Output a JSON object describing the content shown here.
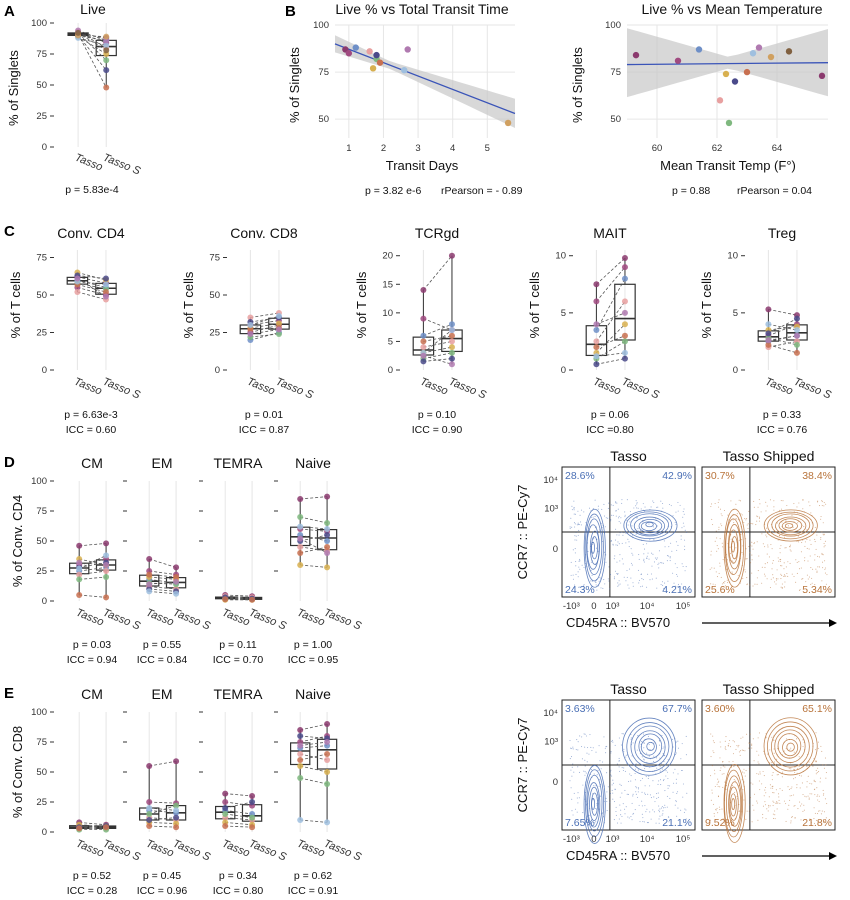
{
  "colors": {
    "tasso_blue": "#4a6fb5",
    "shipped_brown": "#b8733a",
    "fit_line": "#3a54b8",
    "ci_band": "#c8c8c8",
    "box": "#333333",
    "points": [
      "#8b3a6e",
      "#a04a80",
      "#6e8fc7",
      "#e8a0a0",
      "#d8b050",
      "#7fb87f",
      "#4a4a8a",
      "#c87050",
      "#9fbfdf",
      "#b07ab0",
      "#d0a060",
      "#806040"
    ]
  },
  "panel_letters": {
    "A": "A",
    "B": "B",
    "C": "C",
    "D": "D",
    "E": "E"
  },
  "category_labels": [
    "Tasso",
    "Tasso S"
  ],
  "panel_A": {
    "title": "Live",
    "ylabel": "% of Singlets",
    "yticks": [
      "0",
      "25",
      "50",
      "75",
      "100"
    ],
    "ylim": [
      0,
      100
    ],
    "stat": "p = 5.83e-4"
  },
  "panel_B_left": {
    "title": "Live % vs Total Transit Time",
    "xlabel": "Transit Days",
    "ylabel": "% of Singlets",
    "xticks": [
      "1",
      "2",
      "3",
      "4",
      "5"
    ],
    "yticks": [
      "50",
      "75",
      "100"
    ],
    "stat_p": "p = 3.82 e-6",
    "stat_r": "rPearson = - 0.89"
  },
  "panel_B_right": {
    "title": "Live % vs Mean Temperature",
    "xlabel": "Mean Transit Temp (F°)",
    "ylabel": "% of Singlets",
    "xticks": [
      "60",
      "62",
      "64"
    ],
    "yticks": [
      "50",
      "75",
      "100"
    ],
    "stat_p": "p = 0.88",
    "stat_r": "rPearson = 0.04"
  },
  "panel_C": [
    {
      "title": "Conv. CD4",
      "ylabel": "% of T cells",
      "yticks": [
        "0",
        "25",
        "50",
        "75"
      ],
      "p": "p = 6.63e-3",
      "icc": "ICC = 0.60"
    },
    {
      "title": "Conv. CD8",
      "ylabel": "% of T cells",
      "yticks": [
        "0",
        "25",
        "50",
        "75"
      ],
      "p": "p = 0.01",
      "icc": "ICC = 0.87"
    },
    {
      "title": "TCRgd",
      "ylabel": "% of T cells",
      "yticks": [
        "0",
        "5",
        "10",
        "15",
        "20"
      ],
      "p": "p = 0.10",
      "icc": "ICC = 0.90"
    },
    {
      "title": "MAIT",
      "ylabel": "% of T cells",
      "yticks": [
        "0",
        "5",
        "10"
      ],
      "p": "p = 0.06",
      "icc": "ICC =0.80"
    },
    {
      "title": "Treg",
      "ylabel": "% of T cells",
      "yticks": [
        "0",
        "5",
        "10"
      ],
      "p": "p = 0.33",
      "icc": "ICC = 0.76"
    }
  ],
  "panel_D": {
    "ylabel": "% of Conv. CD4",
    "yticks": [
      "0",
      "25",
      "50",
      "75",
      "100"
    ],
    "groups": [
      {
        "title": "CM",
        "p": "p = 0.03",
        "icc": "ICC = 0.94"
      },
      {
        "title": "EM",
        "p": "p = 0.55",
        "icc": "ICC = 0.84"
      },
      {
        "title": "TEMRA",
        "p": "p = 0.11",
        "icc": "ICC = 0.70"
      },
      {
        "title": "Naive",
        "p": "p = 1.00",
        "icc": "ICC = 0.95"
      }
    ]
  },
  "panel_E": {
    "ylabel": "% of Conv. CD8",
    "yticks": [
      "0",
      "25",
      "50",
      "75",
      "100"
    ],
    "groups": [
      {
        "title": "CM",
        "p": "p = 0.52",
        "icc": "ICC = 0.28"
      },
      {
        "title": "EM",
        "p": "p = 0.45",
        "icc": "ICC = 0.96"
      },
      {
        "title": "TEMRA",
        "p": "p = 0.34",
        "icc": "ICC = 0.80"
      },
      {
        "title": "Naive",
        "p": "p = 0.62",
        "icc": "ICC = 0.91"
      }
    ]
  },
  "flow_D": {
    "left_title": "Tasso",
    "right_title": "Tasso Shipped",
    "ylabel": "CCR7 :: PE-Cy7",
    "xlabel": "CD45RA :: BV570",
    "yticks": [
      "10⁴",
      "10³",
      "0"
    ],
    "xticks": [
      "-10³",
      "0",
      "10³",
      "10⁴",
      "10⁵"
    ],
    "left_q": [
      "28.6%",
      "42.9%",
      "24.3%",
      "4.21%"
    ],
    "right_q": [
      "30.7%",
      "38.4%",
      "25.6%",
      "5.34%"
    ]
  },
  "flow_E": {
    "left_title": "Tasso",
    "right_title": "Tasso Shipped",
    "ylabel": "CCR7 :: PE-Cy7",
    "xlabel": "CD45RA :: BV570",
    "yticks": [
      "10⁴",
      "10³",
      "0"
    ],
    "xticks": [
      "-10³",
      "0",
      "10³",
      "10⁴",
      "10⁵"
    ],
    "left_q": [
      "3.63%",
      "67.7%",
      "7.65%",
      "21.1%"
    ],
    "right_q": [
      "3.60%",
      "65.1%",
      "9.52%",
      "21.8%"
    ]
  },
  "chart_data": [
    {
      "type": "scatter",
      "panel": "A",
      "title": "Live",
      "categories": [
        "Tasso",
        "Tasso S"
      ],
      "series": [
        {
          "values": [
            [
              91,
              88
            ],
            [
              92,
              84
            ],
            [
              90,
              86
            ],
            [
              93,
              80
            ],
            [
              89,
              75
            ],
            [
              92,
              70
            ],
            [
              90,
              62
            ],
            [
              91,
              48
            ],
            [
              88,
              82
            ],
            [
              94,
              86
            ],
            [
              90,
              89
            ],
            [
              92,
              78
            ]
          ]
        }
      ],
      "ylabel": "% of Singlets",
      "ylim": [
        0,
        100
      ]
    },
    {
      "type": "scatter",
      "panel": "B-left",
      "title": "Live % vs Total Transit Time",
      "xlabel": "Transit Days",
      "ylabel": "% of Singlets",
      "x": [
        0.9,
        1.0,
        1.2,
        1.6,
        1.7,
        1.8,
        1.8,
        1.9,
        2.6,
        2.7,
        5.6
      ],
      "y": [
        87,
        85,
        88,
        86,
        77,
        82,
        84,
        80,
        76,
        87,
        48
      ],
      "xlim": [
        0.6,
        5.8
      ],
      "ylim": [
        40,
        100
      ]
    },
    {
      "type": "scatter",
      "panel": "B-right",
      "title": "Live % vs Mean Temperature",
      "xlabel": "Mean Transit Temp (F°)",
      "ylabel": "% of Singlets",
      "x": [
        59.3,
        60.7,
        61.4,
        62.1,
        62.3,
        62.4,
        62.6,
        63.0,
        63.2,
        63.4,
        63.8,
        64.4,
        65.5
      ],
      "y": [
        84,
        81,
        87,
        60,
        74,
        48,
        70,
        75,
        85,
        88,
        83,
        86,
        73
      ],
      "xlim": [
        59,
        65.7
      ],
      "ylim": [
        40,
        100
      ]
    },
    {
      "type": "box",
      "panel": "C",
      "groups": [
        {
          "title": "Conv. CD4",
          "ylim": [
            0,
            80
          ],
          "values": [
            [
              62,
              58
            ],
            [
              55,
              50
            ],
            [
              60,
              55
            ],
            [
              52,
              47
            ],
            [
              65,
              60
            ],
            [
              58,
              54
            ],
            [
              63,
              61
            ],
            [
              57,
              52
            ],
            [
              59,
              57
            ],
            [
              61,
              49
            ]
          ]
        },
        {
          "title": "Conv. CD8",
          "ylim": [
            0,
            80
          ],
          "values": [
            [
              25,
              30
            ],
            [
              30,
              33
            ],
            [
              20,
              25
            ],
            [
              35,
              38
            ],
            [
              28,
              31
            ],
            [
              22,
              24
            ],
            [
              32,
              35
            ],
            [
              27,
              28
            ],
            [
              30,
              36
            ],
            [
              24,
              27
            ]
          ]
        },
        {
          "title": "TCRgd",
          "ylim": [
            0,
            21
          ],
          "values": [
            [
              14,
              20
            ],
            [
              9,
              7
            ],
            [
              6,
              8
            ],
            [
              4,
              5
            ],
            [
              3,
              4
            ],
            [
              2,
              3
            ],
            [
              1.5,
              2
            ],
            [
              5,
              6
            ],
            [
              3,
              7
            ],
            [
              2.5,
              1
            ]
          ]
        },
        {
          "title": "MAIT",
          "ylim": [
            0,
            10.5
          ],
          "values": [
            [
              7.5,
              9.8
            ],
            [
              6,
              9
            ],
            [
              3.5,
              8
            ],
            [
              2.5,
              6
            ],
            [
              1.5,
              4
            ],
            [
              1,
              2.5
            ],
            [
              0.5,
              1
            ],
            [
              2,
              3
            ],
            [
              1.2,
              1.5
            ],
            [
              4,
              5
            ]
          ]
        },
        {
          "title": "Treg",
          "ylim": [
            0,
            10.5
          ],
          "values": [
            [
              5.3,
              4.8
            ],
            [
              3,
              4
            ],
            [
              2.5,
              3
            ],
            [
              2,
              2.5
            ],
            [
              3.5,
              3.8
            ],
            [
              2.8,
              2.2
            ],
            [
              3.2,
              4.5
            ],
            [
              2.2,
              1.5
            ],
            [
              4,
              3.5
            ],
            [
              2.6,
              3
            ]
          ]
        }
      ]
    },
    {
      "type": "box",
      "panel": "D",
      "ylim": [
        0,
        100
      ],
      "groups": [
        {
          "title": "CM",
          "values": [
            [
              46,
              48
            ],
            [
              30,
              35
            ],
            [
              25,
              28
            ],
            [
              22,
              25
            ],
            [
              35,
              30
            ],
            [
              18,
              20
            ],
            [
              28,
              32
            ],
            [
              5,
              3
            ],
            [
              27,
              38
            ],
            [
              32,
              30
            ]
          ]
        },
        {
          "title": "EM",
          "values": [
            [
              35,
              28
            ],
            [
              25,
              22
            ],
            [
              18,
              15
            ],
            [
              12,
              10
            ],
            [
              20,
              18
            ],
            [
              15,
              14
            ],
            [
              10,
              8
            ],
            [
              22,
              20
            ],
            [
              8,
              6
            ],
            [
              14,
              16
            ]
          ]
        },
        {
          "title": "TEMRA",
          "values": [
            [
              5,
              4
            ],
            [
              3,
              3
            ],
            [
              2,
              2
            ],
            [
              4,
              3
            ],
            [
              1,
              1
            ],
            [
              2,
              1.5
            ],
            [
              3,
              2
            ],
            [
              1.5,
              1
            ]
          ]
        },
        {
          "title": "Naive",
          "values": [
            [
              85,
              87
            ],
            [
              60,
              58
            ],
            [
              55,
              50
            ],
            [
              45,
              42
            ],
            [
              30,
              28
            ],
            [
              70,
              65
            ],
            [
              50,
              55
            ],
            [
              40,
              45
            ],
            [
              62,
              60
            ],
            [
              52,
              40
            ]
          ]
        }
      ]
    },
    {
      "type": "box",
      "panel": "E",
      "ylim": [
        0,
        100
      ],
      "groups": [
        {
          "title": "CM",
          "values": [
            [
              8,
              6
            ],
            [
              5,
              4
            ],
            [
              4,
              3
            ],
            [
              3,
              3
            ],
            [
              6,
              5
            ],
            [
              2,
              2
            ],
            [
              4,
              5
            ],
            [
              3,
              4
            ]
          ]
        },
        {
          "title": "EM",
          "values": [
            [
              55,
              59
            ],
            [
              25,
              24
            ],
            [
              18,
              16
            ],
            [
              12,
              10
            ],
            [
              8,
              7
            ],
            [
              15,
              22
            ],
            [
              10,
              12
            ],
            [
              5,
              4
            ],
            [
              20,
              18
            ]
          ]
        },
        {
          "title": "TEMRA",
          "values": [
            [
              32,
              30
            ],
            [
              25,
              22
            ],
            [
              18,
              15
            ],
            [
              12,
              10
            ],
            [
              8,
              6
            ],
            [
              15,
              12
            ],
            [
              20,
              25
            ],
            [
              5,
              4
            ]
          ]
        },
        {
          "title": "Naive",
          "values": [
            [
              85,
              90
            ],
            [
              75,
              80
            ],
            [
              70,
              72
            ],
            [
              65,
              60
            ],
            [
              55,
              50
            ],
            [
              45,
              40
            ],
            [
              80,
              78
            ],
            [
              60,
              65
            ],
            [
              10,
              8
            ],
            [
              72,
              75
            ]
          ]
        }
      ]
    }
  ]
}
